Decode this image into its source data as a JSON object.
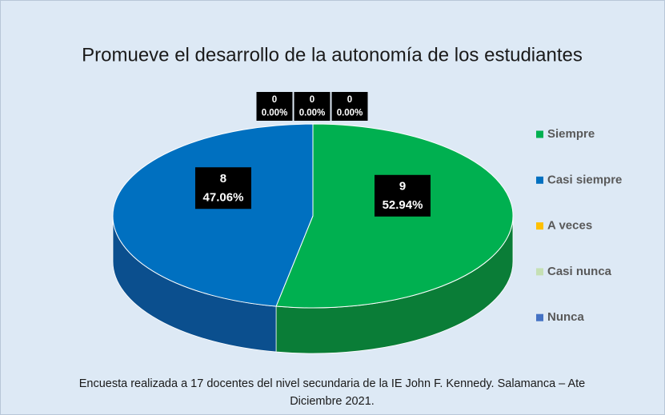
{
  "chart_data": {
    "type": "pie",
    "title": "Promueve el desarrollo de la autonomía de los estudiantes",
    "categories": [
      "Siempre",
      "Casi siempre",
      "A veces",
      "Casi nunca",
      "Nunca"
    ],
    "values": [
      9,
      8,
      0,
      0,
      0
    ],
    "percentages": [
      52.94,
      47.06,
      0,
      0,
      0
    ],
    "percentage_labels": [
      "52.94%",
      "47.06%",
      "0.00%",
      "0.00%",
      "0.00%"
    ],
    "colors": [
      "#00b050",
      "#0070c0",
      "#ffc000",
      "#c5e0b4",
      "#4472c4"
    ],
    "side_colors": [
      "#0a7d37",
      "#0b4f8e",
      "#b38600",
      "#8fb57c",
      "#2f5597"
    ],
    "legend": "right",
    "footnote": [
      "Encuesta realizada a 17 docentes del nivel secundaria de la IE John F. Kennedy. Salamanca – Ate",
      "Diciembre 2021."
    ]
  }
}
